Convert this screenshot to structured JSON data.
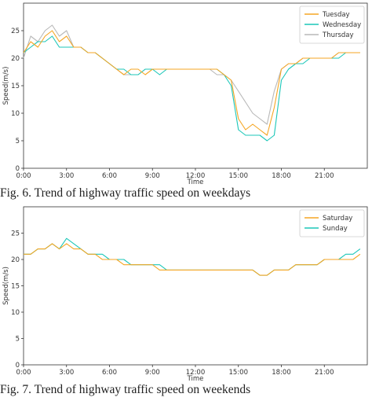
{
  "colors": {
    "Tuesday": "#f5a623",
    "Wednesday": "#1cc7b8",
    "Thursday": "#b8b8b8",
    "Saturday": "#f5a623",
    "Sunday": "#1cc7b8"
  },
  "chart_data": [
    {
      "type": "line",
      "caption": "Fig. 6. Trend of highway traffic speed on weekdays",
      "xlabel": "Time",
      "ylabel": "Speed(m/s)",
      "xlim_hours": [
        0,
        24
      ],
      "ylim": [
        0,
        30
      ],
      "xticks": [
        "0:00",
        "3:00",
        "6:00",
        "9:00",
        "12:00",
        "15:00",
        "18:00",
        "21:00"
      ],
      "yticks": [
        0,
        5,
        10,
        15,
        20,
        25
      ],
      "legend": "top-right",
      "series": [
        {
          "name": "Tuesday",
          "x": [
            0,
            0.5,
            1,
            1.5,
            2,
            2.5,
            3,
            3.5,
            4,
            4.5,
            5,
            5.5,
            6,
            6.5,
            7,
            7.5,
            8,
            8.5,
            9,
            9.5,
            10,
            10.5,
            11,
            11.5,
            12,
            12.5,
            13,
            13.5,
            14,
            14.5,
            15,
            15.5,
            16,
            16.5,
            17,
            17.5,
            18,
            18.5,
            19,
            19.5,
            20,
            20.5,
            21,
            21.5,
            22,
            22.5,
            23,
            23.5
          ],
          "y": [
            21,
            23,
            22,
            24,
            25,
            23,
            24,
            22,
            22,
            21,
            21,
            20,
            19,
            18,
            17,
            18,
            18,
            17,
            18,
            18,
            18,
            18,
            18,
            18,
            18,
            18,
            18,
            18,
            17,
            16,
            9,
            7,
            8,
            7,
            6,
            11,
            18,
            19,
            19,
            20,
            20,
            20,
            20,
            20,
            21,
            21,
            21,
            21
          ]
        },
        {
          "name": "Wednesday",
          "x": [
            0,
            0.5,
            1,
            1.5,
            2,
            2.5,
            3,
            3.5,
            4,
            4.5,
            5,
            5.5,
            6,
            6.5,
            7,
            7.5,
            8,
            8.5,
            9,
            9.5,
            10,
            10.5,
            11,
            11.5,
            12,
            12.5,
            13,
            13.5,
            14,
            14.5,
            15,
            15.5,
            16,
            16.5,
            17,
            17.5,
            18,
            18.5,
            19,
            19.5,
            20,
            20.5,
            21,
            21.5,
            22,
            22.5,
            23,
            23.5
          ],
          "y": [
            21,
            22,
            23,
            23,
            24,
            22,
            22,
            22,
            22,
            21,
            21,
            20,
            19,
            18,
            18,
            17,
            17,
            18,
            18,
            17,
            18,
            18,
            18,
            18,
            18,
            18,
            18,
            18,
            17,
            15,
            7,
            6,
            6,
            6,
            5,
            6,
            16,
            18,
            19,
            19,
            20,
            20,
            20,
            20,
            20,
            21,
            21,
            21
          ]
        },
        {
          "name": "Thursday",
          "x": [
            0,
            0.5,
            1,
            1.5,
            2,
            2.5,
            3,
            3.5,
            4,
            4.5,
            5,
            5.5,
            6,
            6.5,
            7,
            7.5,
            8,
            8.5,
            9,
            9.5,
            10,
            10.5,
            11,
            11.5,
            12,
            12.5,
            13,
            13.5,
            14,
            14.5,
            15,
            15.5,
            16,
            16.5,
            17,
            17.5,
            18,
            18.5,
            19,
            19.5,
            20,
            20.5,
            21,
            21.5,
            22,
            22.5,
            23,
            23.5
          ],
          "y": [
            20,
            24,
            23,
            25,
            26,
            24,
            25,
            22,
            22,
            21,
            21,
            20,
            19,
            18,
            17,
            17,
            17,
            18,
            18,
            18,
            18,
            18,
            18,
            18,
            18,
            18,
            18,
            17,
            17,
            16,
            14,
            12,
            10,
            9,
            8,
            14,
            18,
            19,
            19,
            20,
            20,
            20,
            20,
            20,
            21,
            21,
            21,
            21
          ]
        }
      ]
    },
    {
      "type": "line",
      "caption": "Fig. 7. Trend of highway traffic speed on weekends",
      "xlabel": "Time",
      "ylabel": "Speed(m/s)",
      "xlim_hours": [
        0,
        24
      ],
      "ylim": [
        0,
        30
      ],
      "xticks": [
        "0:00",
        "3:00",
        "6:00",
        "9:00",
        "12:00",
        "15:00",
        "18:00",
        "21:00"
      ],
      "yticks": [
        0,
        5,
        10,
        15,
        20,
        25
      ],
      "legend": "top-right",
      "series": [
        {
          "name": "Saturday",
          "x": [
            0,
            0.5,
            1,
            1.5,
            2,
            2.5,
            3,
            3.5,
            4,
            4.5,
            5,
            5.5,
            6,
            6.5,
            7,
            7.5,
            8,
            8.5,
            9,
            9.5,
            10,
            10.5,
            11,
            11.5,
            12,
            12.5,
            13,
            13.5,
            14,
            14.5,
            15,
            15.5,
            16,
            16.5,
            17,
            17.5,
            18,
            18.5,
            19,
            19.5,
            20,
            20.5,
            21,
            21.5,
            22,
            22.5,
            23,
            23.5
          ],
          "y": [
            21,
            21,
            22,
            22,
            23,
            22,
            23,
            22,
            22,
            21,
            21,
            20,
            20,
            20,
            19,
            19,
            19,
            19,
            19,
            18,
            18,
            18,
            18,
            18,
            18,
            18,
            18,
            18,
            18,
            18,
            18,
            18,
            18,
            17,
            17,
            18,
            18,
            18,
            19,
            19,
            19,
            19,
            20,
            20,
            20,
            20,
            20,
            21
          ]
        },
        {
          "name": "Sunday",
          "x": [
            0,
            0.5,
            1,
            1.5,
            2,
            2.5,
            3,
            3.5,
            4,
            4.5,
            5,
            5.5,
            6,
            6.5,
            7,
            7.5,
            8,
            8.5,
            9,
            9.5,
            10,
            10.5,
            11,
            11.5,
            12,
            12.5,
            13,
            13.5,
            14,
            14.5,
            15,
            15.5,
            16,
            16.5,
            17,
            17.5,
            18,
            18.5,
            19,
            19.5,
            20,
            20.5,
            21,
            21.5,
            22,
            22.5,
            23,
            23.5
          ],
          "y": [
            21,
            21,
            22,
            22,
            23,
            22,
            24,
            23,
            22,
            21,
            21,
            21,
            20,
            20,
            20,
            19,
            19,
            19,
            19,
            19,
            18,
            18,
            18,
            18,
            18,
            18,
            18,
            18,
            18,
            18,
            18,
            18,
            18,
            17,
            17,
            18,
            18,
            18,
            19,
            19,
            19,
            19,
            20,
            20,
            20,
            21,
            21,
            22
          ]
        }
      ]
    }
  ]
}
